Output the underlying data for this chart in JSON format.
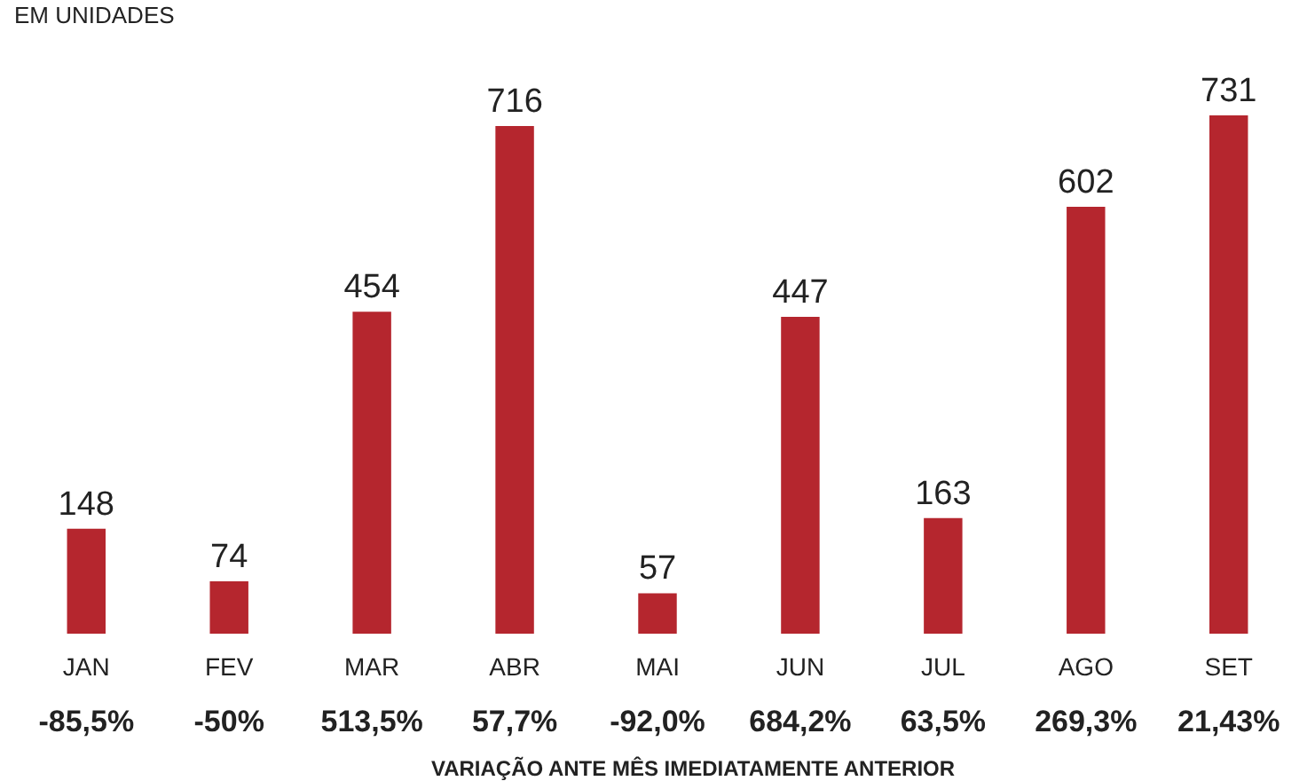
{
  "chart_data": {
    "type": "bar",
    "subtitle": "EM UNIDADES",
    "categories": [
      "JAN",
      "FEV",
      "MAR",
      "ABR",
      "MAI",
      "JUN",
      "JUL",
      "AGO",
      "SET"
    ],
    "values": [
      148,
      74,
      454,
      716,
      57,
      447,
      163,
      602,
      731
    ],
    "color": "#b5262e",
    "data_labels": true,
    "annotations": [
      "-85,5%",
      "-50%",
      "513,5%",
      "57,7%",
      "-92,0%",
      "684,2%",
      "63,5%",
      "269,3%",
      "21,43%",
      "VARIAÇÃO ANTE MÊS IMEDIATAMENTE ANTERIOR"
    ]
  }
}
